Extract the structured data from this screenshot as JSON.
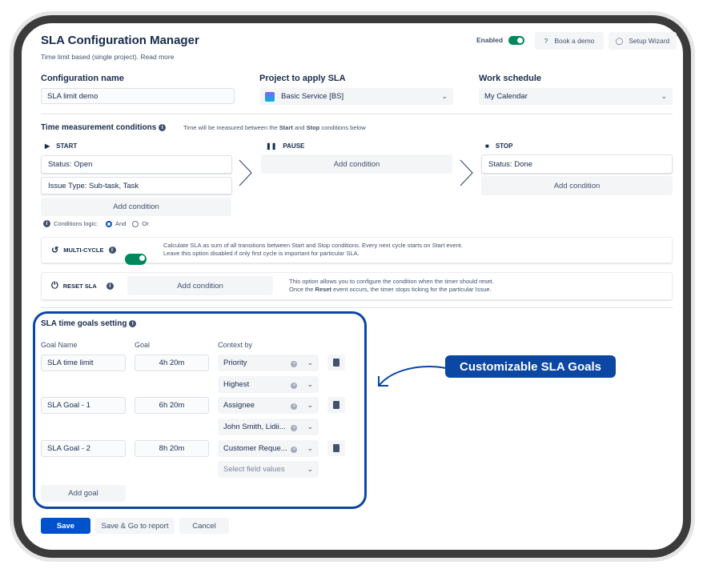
{
  "header": {
    "title": "SLA Configuration Manager",
    "subtitle": "Time limit based (single project). Read more",
    "enabled_label": "Enabled",
    "enabled": true,
    "book_demo": "Book a demo",
    "setup_wizard": "Setup Wizard"
  },
  "fields": {
    "config_name_label": "Configuration name",
    "config_name_value": "SLA limit demo",
    "project_label": "Project to apply SLA",
    "project_value": "Basic Service [BS]",
    "schedule_label": "Work schedule",
    "schedule_value": "My Calendar"
  },
  "conditions": {
    "title": "Time measurement conditions",
    "hint_pre": "Time will be measured between the ",
    "hint_start": "Start",
    "hint_mid": " and ",
    "hint_stop": "Stop",
    "hint_post": " conditions below",
    "start": {
      "label": "START",
      "items": [
        "Status: Open",
        "Issue Type: Sub-task, Task"
      ],
      "add": "Add condition"
    },
    "pause": {
      "label": "PAUSE",
      "add": "Add condition"
    },
    "stop": {
      "label": "STOP",
      "items": [
        "Status: Done"
      ],
      "add": "Add condition"
    },
    "logic_label": "Conditions logic:",
    "logic_and": "And",
    "logic_or": "Or",
    "logic_selected": "And"
  },
  "multicycle": {
    "label": "MULTI-CYCLE",
    "enabled": true,
    "desc1": "Calculate SLA as sum of all transitions between Start and Stop conditions. Every next cycle starts on Start event.",
    "desc2": "Leave this option disabled if only first cycle is important for particular SLA."
  },
  "reset": {
    "label": "RESET SLA",
    "add": "Add condition",
    "desc1": "This option allows you to configure the condition when the timer should reset.",
    "desc2_pre": "Once the ",
    "desc2_bold": "Reset",
    "desc2_post": " event occurs, the timer stops ticking for the particular Issue."
  },
  "goals": {
    "title": "SLA time goals setting",
    "col_name": "Goal Name",
    "col_goal": "Goal",
    "col_context": "Context by",
    "rows": [
      {
        "name": "SLA time limit",
        "goal": "4h 20m",
        "context": "Priority",
        "values": "Highest"
      },
      {
        "name": "SLA Goal - 1",
        "goal": "6h 20m",
        "context": "Assignee",
        "values": "John Smith, Lidii..."
      },
      {
        "name": "SLA Goal - 2",
        "goal": "8h 20m",
        "context": "Customer Reque...",
        "values_placeholder": "Select field values"
      }
    ],
    "add_goal": "Add goal"
  },
  "actions": {
    "save": "Save",
    "save_report": "Save & Go to report",
    "cancel": "Cancel"
  },
  "callout": {
    "text": "Customizable SLA Goals",
    "color": "#0b47a3"
  },
  "colors": {
    "primary": "#0052cc",
    "toggle": "#00875a"
  }
}
